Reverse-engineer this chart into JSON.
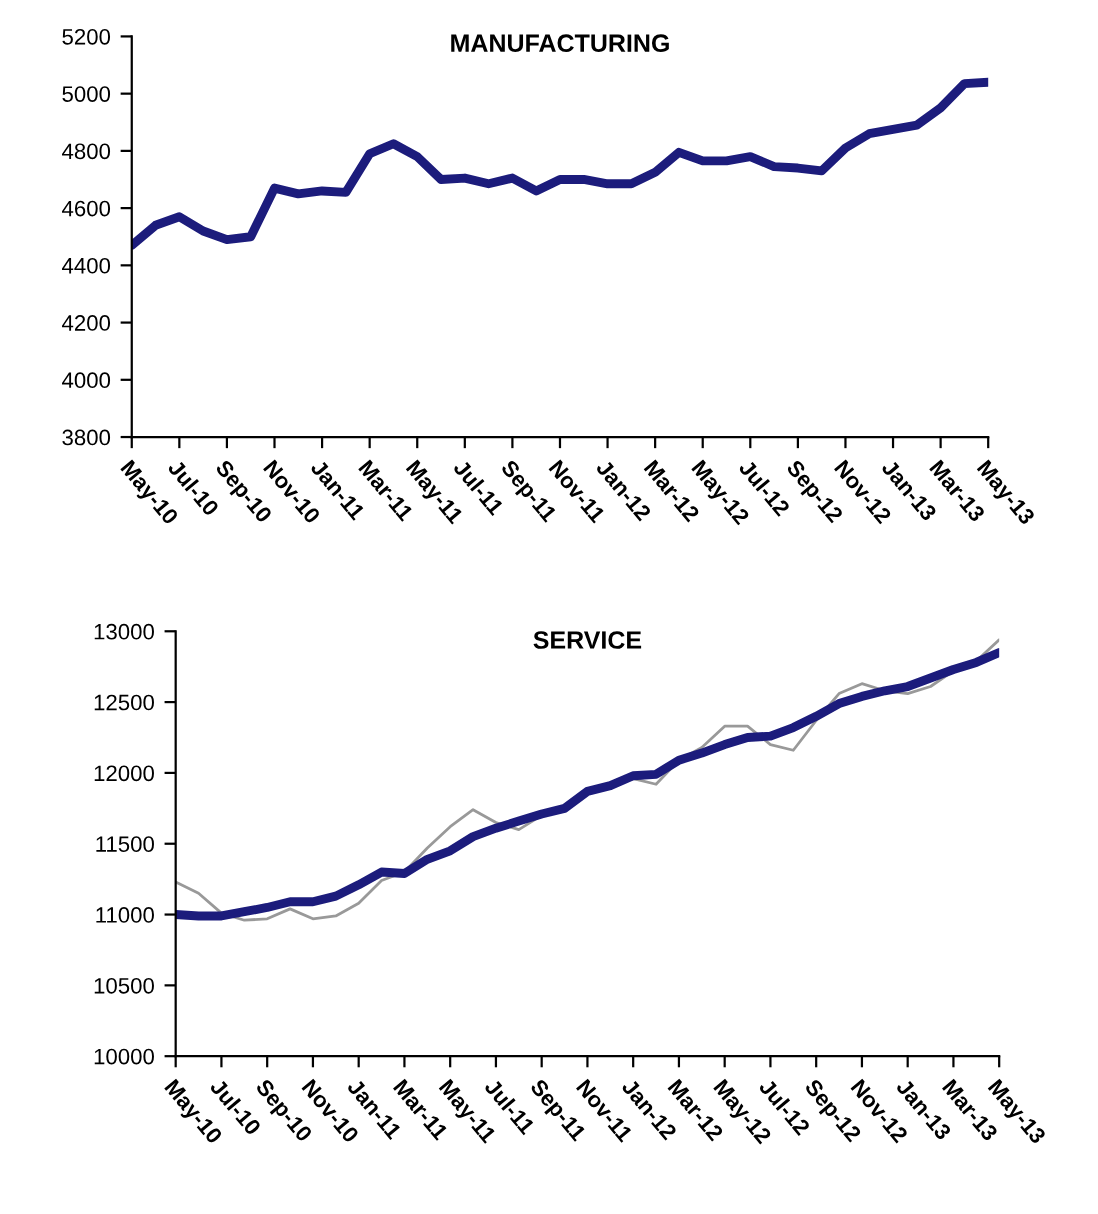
{
  "chart_data": [
    {
      "type": "line",
      "title": "MANUFACTURING",
      "categories": [
        "May-10",
        null,
        "Jul-10",
        null,
        "Sep-10",
        null,
        "Nov-10",
        null,
        "Jan-11",
        null,
        "Mar-11",
        null,
        "May-11",
        null,
        "Jul-11",
        null,
        "Sep-11",
        null,
        "Nov-11",
        null,
        "Jan-12",
        null,
        "Mar-12",
        null,
        "May-12",
        null,
        "Jul-12",
        null,
        "Sep-12",
        null,
        "Nov-12",
        null,
        "Jan-13",
        null,
        "Mar-13",
        null,
        "May-13"
      ],
      "series": [
        {
          "color": "#1c1c7c",
          "values": [
            4470,
            4540,
            4570,
            4520,
            4490,
            4500,
            4670,
            4650,
            4660,
            4655,
            4790,
            4825,
            4780,
            4700,
            4705,
            4685,
            4705,
            4660,
            4700,
            4700,
            4685,
            4685,
            4725,
            4795,
            4765,
            4765,
            4780,
            4745,
            4740,
            4730,
            4810,
            4860,
            4875,
            4890,
            4950,
            5035,
            5040
          ]
        }
      ],
      "ylim": [
        3800,
        5200
      ],
      "yticks": [
        3800,
        4000,
        4200,
        4400,
        4600,
        4800,
        5000,
        5200
      ]
    },
    {
      "type": "line",
      "title": "SERVICE",
      "categories": [
        "May-10",
        null,
        "Jul-10",
        null,
        "Sep-10",
        null,
        "Nov-10",
        null,
        "Jan-11",
        null,
        "Mar-11",
        null,
        "May-11",
        null,
        "Jul-11",
        null,
        "Sep-11",
        null,
        "Nov-11",
        null,
        "Jan-12",
        null,
        "Mar-12",
        null,
        "May-12",
        null,
        "Jul-12",
        null,
        "Sep-12",
        null,
        "Nov-12",
        null,
        "Jan-13",
        null,
        "Mar-13",
        null,
        "May-13"
      ],
      "series": [
        {
          "color": "#999999",
          "values": [
            11230,
            11150,
            11010,
            10960,
            10970,
            11040,
            10970,
            10990,
            11080,
            11240,
            11300,
            11470,
            11620,
            11740,
            11650,
            11600,
            11700,
            11730,
            11850,
            11900,
            11960,
            11920,
            12090,
            12180,
            12330,
            12330,
            12200,
            12160,
            12370,
            12560,
            12630,
            12580,
            12560,
            12610,
            12720,
            12790,
            12940
          ]
        },
        {
          "color": "#1c1c7c",
          "values": [
            11000,
            10990,
            10990,
            11020,
            11050,
            11090,
            11090,
            11130,
            11210,
            11300,
            11290,
            11390,
            11450,
            11550,
            11610,
            11660,
            11710,
            11750,
            11870,
            11910,
            11980,
            11990,
            12090,
            12140,
            12200,
            12250,
            12260,
            12320,
            12400,
            12490,
            12540,
            12580,
            12610,
            12670,
            12730,
            12780,
            12850
          ]
        }
      ],
      "ylim": [
        10000,
        13000
      ],
      "yticks": [
        10000,
        10500,
        11000,
        11500,
        12000,
        12500,
        13000
      ]
    }
  ]
}
